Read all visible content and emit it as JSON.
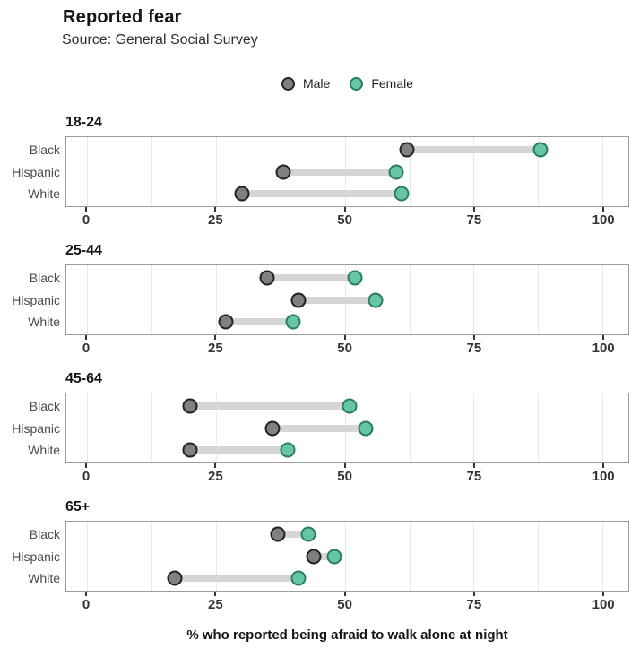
{
  "header": {
    "title": "Reported fear",
    "subtitle": "Source: General Social Survey"
  },
  "chart_data": {
    "type": "scatter",
    "variant": "dumbbell",
    "title": "Reported fear",
    "subtitle": "Source: General Social Survey",
    "xlabel": "% who reported being afraid to walk alone at night",
    "ylabel": "",
    "xlim": [
      -4,
      105
    ],
    "xticks": [
      0,
      25,
      50,
      75,
      100
    ],
    "gridline_step": 12.5,
    "grid": true,
    "legend_position": "top-center",
    "legend": [
      {
        "label": "Male",
        "fill": "#808080",
        "stroke": "#222222"
      },
      {
        "label": "Female",
        "fill": "#66c6a2",
        "stroke": "#2c7d5f"
      }
    ],
    "series_names": [
      "Male",
      "Female"
    ],
    "facets": [
      {
        "label": "18-24",
        "categories": [
          "Black",
          "Hispanic",
          "White"
        ],
        "rows": [
          {
            "category": "Black",
            "male": 62,
            "female": 88
          },
          {
            "category": "Hispanic",
            "male": 38,
            "female": 60
          },
          {
            "category": "White",
            "male": 30,
            "female": 61
          }
        ]
      },
      {
        "label": "25-44",
        "categories": [
          "Black",
          "Hispanic",
          "White"
        ],
        "rows": [
          {
            "category": "Black",
            "male": 35,
            "female": 52
          },
          {
            "category": "Hispanic",
            "male": 41,
            "female": 56
          },
          {
            "category": "White",
            "male": 27,
            "female": 40
          }
        ]
      },
      {
        "label": "45-64",
        "categories": [
          "Black",
          "Hispanic",
          "White"
        ],
        "rows": [
          {
            "category": "Black",
            "male": 20,
            "female": 51
          },
          {
            "category": "Hispanic",
            "male": 36,
            "female": 54
          },
          {
            "category": "White",
            "male": 20,
            "female": 39
          }
        ]
      },
      {
        "label": "65+",
        "categories": [
          "Black",
          "Hispanic",
          "White"
        ],
        "rows": [
          {
            "category": "Black",
            "male": 37,
            "female": 43
          },
          {
            "category": "Hispanic",
            "male": 44,
            "female": 48
          },
          {
            "category": "White",
            "male": 17,
            "female": 41
          }
        ]
      }
    ],
    "colors": {
      "male_fill": "#808080",
      "male_stroke": "#222222",
      "female_fill": "#66c6a2",
      "female_stroke": "#2c7d5f",
      "segment": "#d6d6d6",
      "gridline": "#e9e9e9",
      "panel_border": "#9c9c9c"
    }
  }
}
